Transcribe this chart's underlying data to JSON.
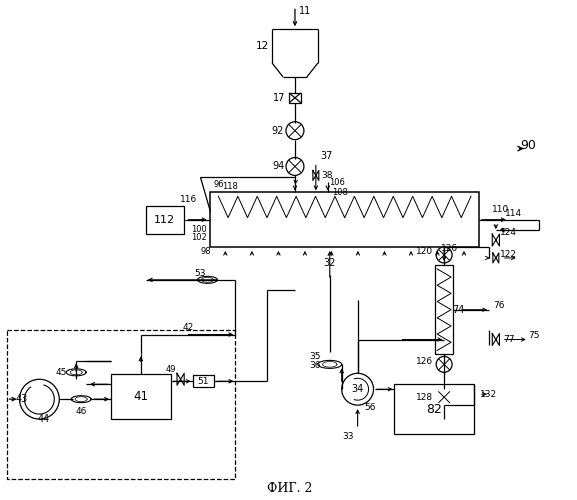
{
  "title": "ФИГ. 2",
  "bg_color": "#ffffff",
  "fig_width": 5.77,
  "fig_height": 5.0
}
